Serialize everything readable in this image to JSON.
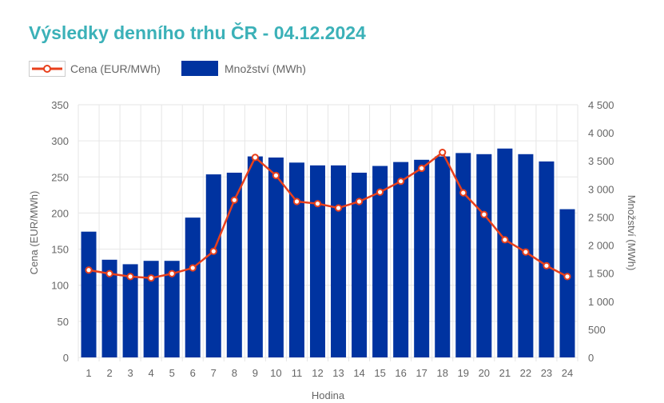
{
  "chart_data": {
    "type": "bar",
    "title": "Výsledky denního trhu ČR - 04.12.2024",
    "categories": [
      "1",
      "2",
      "3",
      "4",
      "5",
      "6",
      "7",
      "8",
      "9",
      "10",
      "11",
      "12",
      "13",
      "14",
      "15",
      "16",
      "17",
      "18",
      "19",
      "20",
      "21",
      "22",
      "23",
      "24"
    ],
    "xlabel": "Hodina",
    "ylabel_left": "Cena (EUR/MWh)",
    "ylabel_right": "Množství (MWh)",
    "ylim_left": [
      0,
      350
    ],
    "ylim_right": [
      0,
      4500
    ],
    "yticks_left": [
      "0",
      "50",
      "100",
      "150",
      "200",
      "250",
      "300",
      "350"
    ],
    "yticks_right": [
      "0",
      "500",
      "1 000",
      "1 500",
      "2 000",
      "2 500",
      "3 000",
      "3 500",
      "4 000",
      "4 500"
    ],
    "series": [
      {
        "name": "Cena (EUR/MWh)",
        "type": "line",
        "axis": "left",
        "color": "#e8401c",
        "values": [
          121,
          116,
          112,
          110,
          116,
          124,
          147,
          218,
          277,
          252,
          216,
          213,
          207,
          216,
          229,
          244,
          262,
          284,
          228,
          198,
          163,
          146,
          127,
          112
        ]
      },
      {
        "name": "Množství (MWh)",
        "type": "bar",
        "axis": "right",
        "color": "#0033a0",
        "values": [
          2240,
          1740,
          1660,
          1720,
          1720,
          2490,
          3260,
          3290,
          3580,
          3560,
          3470,
          3420,
          3420,
          3290,
          3410,
          3480,
          3520,
          3580,
          3640,
          3620,
          3720,
          3620,
          3490,
          2640
        ]
      }
    ],
    "legend": [
      "Cena (EUR/MWh)",
      "Množství (MWh)"
    ],
    "grid": true
  }
}
